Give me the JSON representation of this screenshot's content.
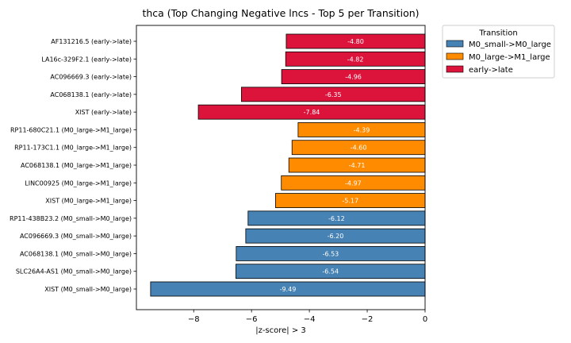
{
  "chart_data": {
    "type": "bar",
    "orientation": "horizontal",
    "title": "thca (Top Changing Negative lncs - Top 5 per Transition)",
    "xlabel": "|z-score| > 3",
    "ylabel": "",
    "xlim": [
      -9.98,
      0
    ],
    "xticks": [
      -8,
      -6,
      -4,
      -2,
      0
    ],
    "xtick_labels": [
      "−8",
      "−6",
      "−4",
      "−2",
      "0"
    ],
    "grid": false,
    "legend": {
      "title": "Transition",
      "placement": "outside-top-right",
      "entries": [
        {
          "name": "M0_small->M0_large",
          "color": "#4682b4"
        },
        {
          "name": "M0_large->M1_large",
          "color": "#ff8c00"
        },
        {
          "name": "early->late",
          "color": "#dc143c"
        }
      ]
    },
    "categories": [
      "AF131216.5 (early->late)",
      "LA16c-329F2.1 (early->late)",
      "AC096669.3 (early->late)",
      "AC068138.1 (early->late)",
      "XIST (early->late)",
      "RP11-680C21.1 (M0_large->M1_large)",
      "RP11-173C1.1 (M0_large->M1_large)",
      "AC068138.1 (M0_large->M1_large)",
      "LINC00925 (M0_large->M1_large)",
      "XIST (M0_large->M1_large)",
      "RP11-438B23.2 (M0_small->M0_large)",
      "AC096669.3 (M0_small->M0_large)",
      "AC068138.1 (M0_small->M0_large)",
      "SLC26A4-AS1 (M0_small->M0_large)",
      "XIST (M0_small->M0_large)"
    ],
    "values": [
      -4.8,
      -4.82,
      -4.96,
      -6.35,
      -7.84,
      -4.39,
      -4.6,
      -4.71,
      -4.97,
      -5.17,
      -6.12,
      -6.2,
      -6.53,
      -6.54,
      -9.49
    ],
    "value_labels": [
      "-4.80",
      "-4.82",
      "-4.96",
      "-6.35",
      "-7.84",
      "-4.39",
      "-4.60",
      "-4.71",
      "-4.97",
      "-5.17",
      "-6.12",
      "-6.20",
      "-6.53",
      "-6.54",
      "-9.49"
    ],
    "series_index": [
      2,
      2,
      2,
      2,
      2,
      1,
      1,
      1,
      1,
      1,
      0,
      0,
      0,
      0,
      0
    ]
  }
}
